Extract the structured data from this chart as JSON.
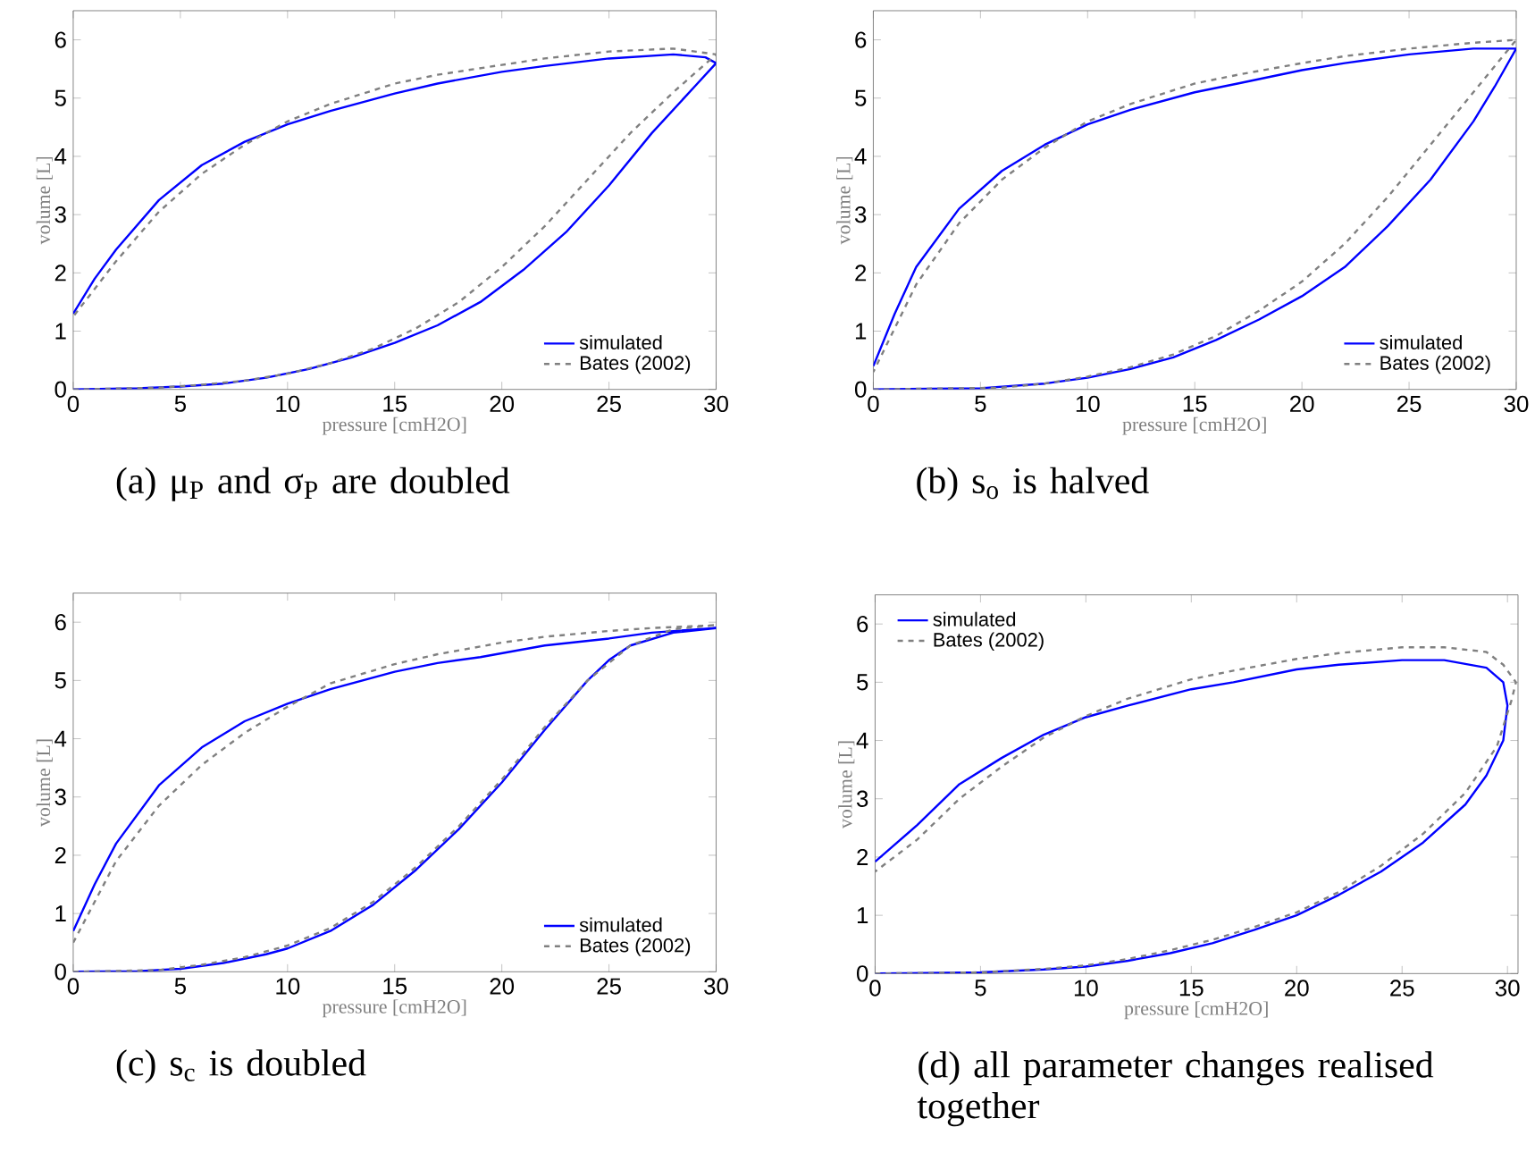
{
  "chart_data": [
    {
      "type": "line",
      "title": "(a) μ$_{P}$ and σ$_{P}$ are doubled",
      "xlabel": "pressure [cmH2O]",
      "ylabel": "volume [L]",
      "xlim": [
        0,
        30
      ],
      "ylim": [
        0,
        6.5
      ],
      "xticks": [
        0,
        5,
        10,
        15,
        20,
        25,
        30
      ],
      "yticks": [
        0,
        1,
        2,
        3,
        4,
        5,
        6
      ],
      "legend": "bottom right",
      "series": [
        {
          "name": "simulated",
          "color": "#0000ff",
          "line_style": "solid",
          "x": [
            0,
            3,
            5,
            7,
            9,
            11,
            13,
            15,
            17,
            19,
            21,
            23,
            25,
            27,
            29,
            30,
            29.5,
            28,
            25,
            22,
            20,
            17,
            15,
            12,
            10,
            8,
            6,
            4,
            2,
            1,
            0
          ],
          "values": [
            0,
            0.02,
            0.05,
            0.1,
            0.2,
            0.35,
            0.55,
            0.8,
            1.1,
            1.5,
            2.05,
            2.7,
            3.5,
            4.4,
            5.2,
            5.6,
            5.7,
            5.75,
            5.68,
            5.55,
            5.45,
            5.25,
            5.08,
            4.78,
            4.55,
            4.25,
            3.85,
            3.25,
            2.4,
            1.9,
            1.3
          ]
        },
        {
          "name": "Bates (2002)",
          "color": "#808080",
          "line_style": "dashed",
          "x": [
            0,
            4,
            6,
            8,
            10,
            12,
            14,
            16,
            18,
            20,
            22,
            24,
            26,
            28,
            30,
            28,
            25,
            22,
            20,
            17,
            15,
            12,
            10,
            8,
            6,
            4,
            2,
            0
          ],
          "values": [
            0,
            0.03,
            0.08,
            0.15,
            0.27,
            0.45,
            0.7,
            1.05,
            1.5,
            2.1,
            2.8,
            3.6,
            4.4,
            5.1,
            5.75,
            5.85,
            5.8,
            5.68,
            5.57,
            5.4,
            5.25,
            4.9,
            4.6,
            4.2,
            3.7,
            3.05,
            2.2,
            1.25
          ]
        }
      ]
    },
    {
      "type": "line",
      "title": "(b) s$_{o}$ is halved",
      "xlabel": "pressure [cmH2O]",
      "ylabel": "volume [L]",
      "xlim": [
        0,
        30
      ],
      "ylim": [
        0,
        6.5
      ],
      "xticks": [
        0,
        5,
        10,
        15,
        20,
        25,
        30
      ],
      "yticks": [
        0,
        1,
        2,
        3,
        4,
        5,
        6
      ],
      "legend": "bottom right",
      "series": [
        {
          "name": "simulated",
          "color": "#0000ff",
          "line_style": "solid",
          "x": [
            0,
            5,
            8,
            10,
            12,
            14,
            16,
            18,
            20,
            22,
            24,
            26,
            28,
            29,
            30,
            28,
            25,
            22,
            20,
            17,
            15,
            12,
            10,
            8,
            6,
            4,
            2,
            1,
            0
          ],
          "values": [
            0,
            0.02,
            0.1,
            0.2,
            0.35,
            0.55,
            0.85,
            1.2,
            1.6,
            2.1,
            2.8,
            3.6,
            4.6,
            5.2,
            5.85,
            5.85,
            5.75,
            5.6,
            5.48,
            5.25,
            5.1,
            4.8,
            4.55,
            4.2,
            3.75,
            3.1,
            2.1,
            1.3,
            0.4
          ]
        },
        {
          "name": "Bates (2002)",
          "color": "#808080",
          "line_style": "dashed",
          "x": [
            0,
            6,
            8,
            10,
            12,
            14,
            16,
            18,
            20,
            22,
            24,
            26,
            28,
            30,
            28,
            25,
            22,
            20,
            17,
            15,
            12,
            10,
            8,
            6,
            4,
            2,
            0
          ],
          "values": [
            0,
            0.03,
            0.1,
            0.22,
            0.38,
            0.6,
            0.92,
            1.35,
            1.85,
            2.5,
            3.3,
            4.2,
            5.1,
            6.0,
            5.95,
            5.85,
            5.72,
            5.6,
            5.4,
            5.25,
            4.9,
            4.6,
            4.15,
            3.6,
            2.85,
            1.8,
            0.3
          ]
        }
      ]
    },
    {
      "type": "line",
      "title": "(c) s$_{c}$ is doubled",
      "xlabel": "pressure [cmH2O]",
      "ylabel": "volume [L]",
      "xlim": [
        0,
        30
      ],
      "ylim": [
        0,
        6.5
      ],
      "xticks": [
        0,
        5,
        10,
        15,
        20,
        25,
        30
      ],
      "yticks": [
        0,
        1,
        2,
        3,
        4,
        5,
        6
      ],
      "legend": "bottom right",
      "series": [
        {
          "name": "simulated",
          "color": "#0000ff",
          "line_style": "solid",
          "x": [
            0,
            3,
            5,
            7,
            9,
            10,
            12,
            14,
            16,
            18,
            20,
            22,
            24,
            25,
            26,
            28,
            30,
            27,
            25,
            22,
            19,
            17,
            15,
            12,
            10,
            8,
            6,
            4,
            2,
            1,
            0
          ],
          "values": [
            0,
            0.01,
            0.05,
            0.15,
            0.3,
            0.4,
            0.7,
            1.15,
            1.75,
            2.45,
            3.25,
            4.15,
            5.0,
            5.35,
            5.6,
            5.82,
            5.9,
            5.82,
            5.72,
            5.6,
            5.4,
            5.3,
            5.15,
            4.85,
            4.6,
            4.3,
            3.85,
            3.2,
            2.2,
            1.5,
            0.7
          ]
        },
        {
          "name": "Bates (2002)",
          "color": "#808080",
          "line_style": "dashed",
          "x": [
            0,
            4,
            6,
            8,
            10,
            12,
            14,
            16,
            18,
            20,
            22,
            24,
            26,
            28,
            30,
            27,
            25,
            22,
            20,
            17,
            15,
            12,
            10,
            8,
            6,
            4,
            2,
            0
          ],
          "values": [
            0,
            0.03,
            0.12,
            0.25,
            0.45,
            0.75,
            1.2,
            1.8,
            2.5,
            3.3,
            4.2,
            5.0,
            5.6,
            5.88,
            5.95,
            5.9,
            5.85,
            5.75,
            5.65,
            5.45,
            5.28,
            4.95,
            4.55,
            4.1,
            3.55,
            2.85,
            1.9,
            0.5
          ]
        }
      ]
    },
    {
      "type": "line",
      "title": "(d) all parameter changes realised together",
      "xlabel": "pressure [cmH2O]",
      "ylabel": "volume [L]",
      "xlim": [
        0,
        30.5
      ],
      "ylim": [
        0,
        6.5
      ],
      "xticks": [
        0,
        5,
        10,
        15,
        20,
        25,
        30
      ],
      "yticks": [
        0,
        1,
        2,
        3,
        4,
        5,
        6
      ],
      "legend": "top left",
      "series": [
        {
          "name": "simulated",
          "color": "#0000ff",
          "line_style": "solid",
          "x": [
            0,
            5,
            8,
            10,
            12,
            14,
            16,
            18,
            20,
            22,
            24,
            26,
            28,
            29,
            29.8,
            30,
            29.8,
            29,
            27,
            25,
            22,
            20,
            17,
            15,
            12,
            10,
            8,
            6,
            4,
            2,
            0
          ],
          "values": [
            0,
            0.02,
            0.07,
            0.12,
            0.22,
            0.35,
            0.52,
            0.75,
            1.0,
            1.35,
            1.75,
            2.25,
            2.9,
            3.4,
            4.0,
            4.6,
            5.0,
            5.25,
            5.38,
            5.38,
            5.3,
            5.22,
            5.0,
            4.88,
            4.6,
            4.4,
            4.1,
            3.7,
            3.25,
            2.55,
            1.92
          ]
        },
        {
          "name": "Bates (2002)",
          "color": "#808080",
          "line_style": "dashed",
          "x": [
            0,
            5,
            8,
            10,
            12,
            14,
            16,
            18,
            20,
            22,
            24,
            26,
            28,
            29.5,
            30.2,
            30.4,
            29.8,
            29,
            27,
            25,
            22,
            20,
            17,
            15,
            12,
            10,
            8,
            6,
            4,
            2,
            0
          ],
          "values": [
            0,
            0.02,
            0.08,
            0.14,
            0.25,
            0.4,
            0.58,
            0.8,
            1.05,
            1.4,
            1.85,
            2.4,
            3.1,
            3.9,
            4.7,
            5.0,
            5.3,
            5.52,
            5.6,
            5.6,
            5.5,
            5.4,
            5.2,
            5.05,
            4.72,
            4.42,
            4.05,
            3.55,
            3.0,
            2.3,
            1.75
          ]
        }
      ]
    }
  ]
}
